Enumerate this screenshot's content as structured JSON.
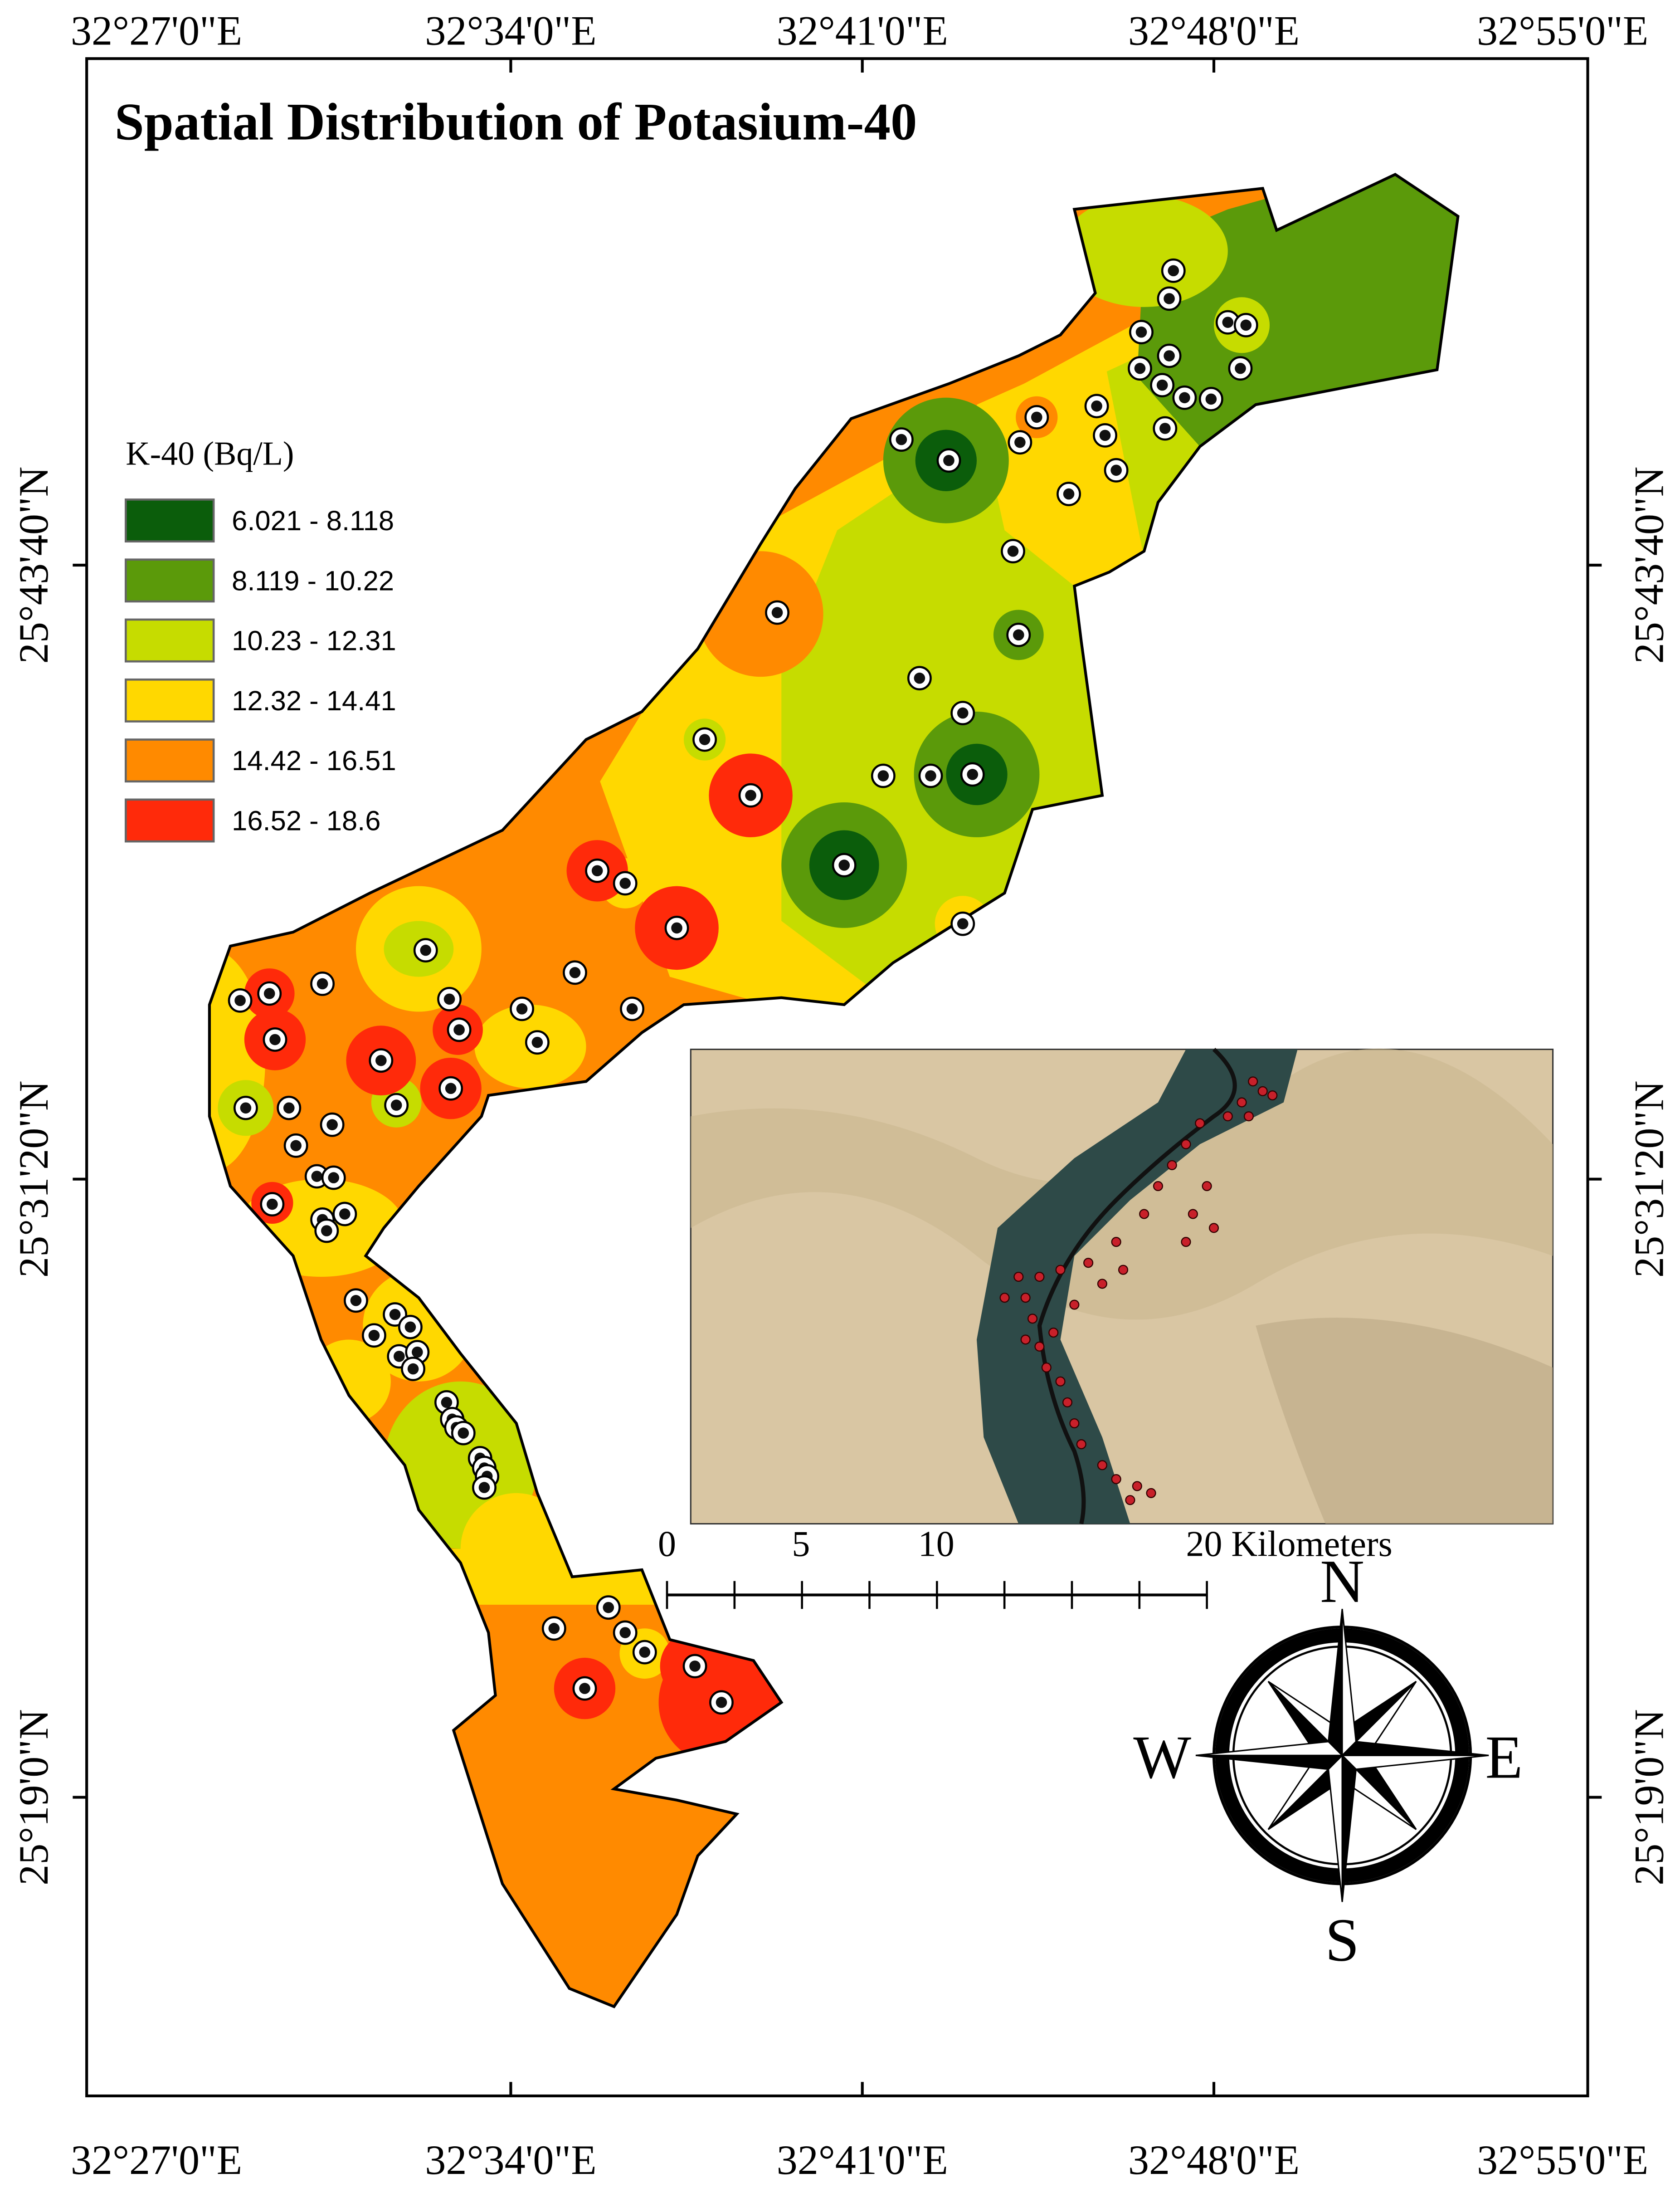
{
  "title": "Spatial Distribution of Potasium-40",
  "legend": {
    "title": "K-40 (Bq/L)",
    "items": [
      {
        "label": "6.021 - 8.118",
        "color": "#0b5d0b"
      },
      {
        "label": "8.119 - 10.22",
        "color": "#5b9a0a"
      },
      {
        "label": "10.23 - 12.31",
        "color": "#c6dc00"
      },
      {
        "label": "12.32 - 14.41",
        "color": "#ffd800"
      },
      {
        "label": "14.42 - 16.51",
        "color": "#ff8a00"
      },
      {
        "label": "16.52 - 18.6",
        "color": "#ff2a0a"
      }
    ]
  },
  "top_labels": [
    "32°27'0\"E",
    "32°34'0\"E",
    "32°41'0\"E",
    "32°48'0\"E",
    "32°55'0\"E"
  ],
  "bottom_labels": [
    "32°27'0\"E",
    "32°34'0\"E",
    "32°41'0\"E",
    "32°48'0\"E",
    "32°55'0\"E"
  ],
  "left_labels": [
    "25°43'40\"N",
    "25°31'20\"N",
    "25°19'0\"N"
  ],
  "right_labels": [
    "25°43'40\"N",
    "25°31'20\"N",
    "25°19'0\"N"
  ],
  "compass": {
    "n": "N",
    "s": "S",
    "e": "E",
    "w": "W"
  },
  "scale_bar": {
    "labels": [
      "0",
      "5",
      "10",
      "20 Kilometers"
    ]
  }
}
